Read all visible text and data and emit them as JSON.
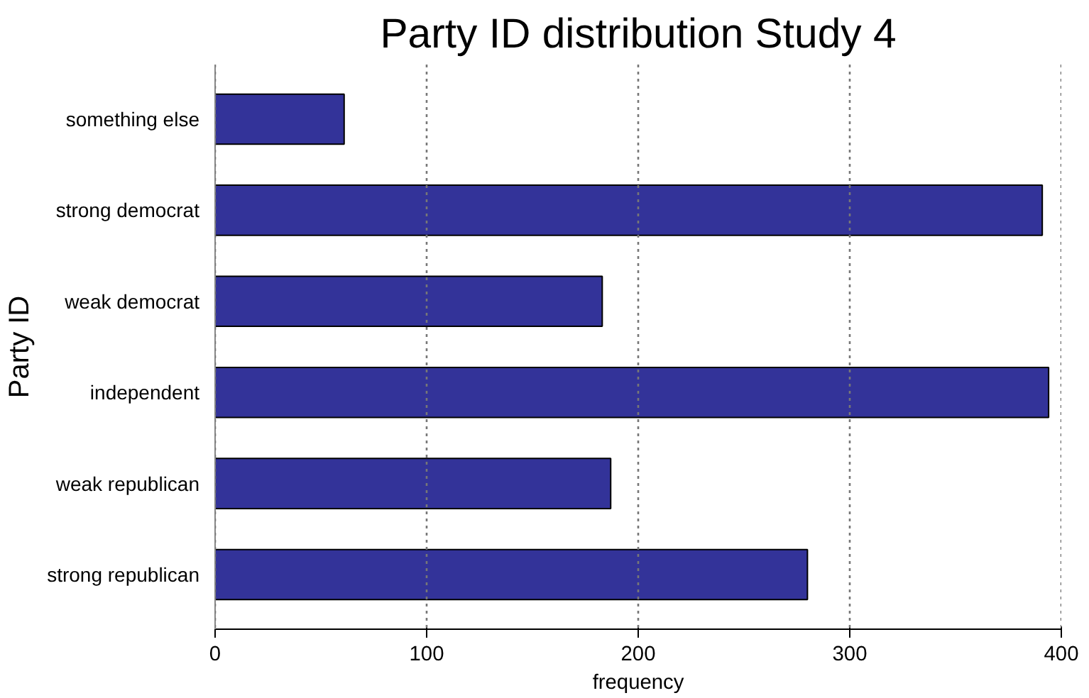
{
  "chart_data": {
    "type": "bar",
    "orientation": "horizontal",
    "title": "Party ID distribution Study 4",
    "xlabel": "frequency",
    "ylabel": "Party ID",
    "categories": [
      "something else",
      "strong democrat",
      "weak democrat",
      "independent",
      "weak republican",
      "strong republican"
    ],
    "values": [
      61,
      391,
      183,
      394,
      187,
      280
    ],
    "color": "#333399",
    "xlim": [
      0,
      400
    ],
    "xticks": [
      0,
      100,
      200,
      300,
      400
    ],
    "grid": "x"
  }
}
